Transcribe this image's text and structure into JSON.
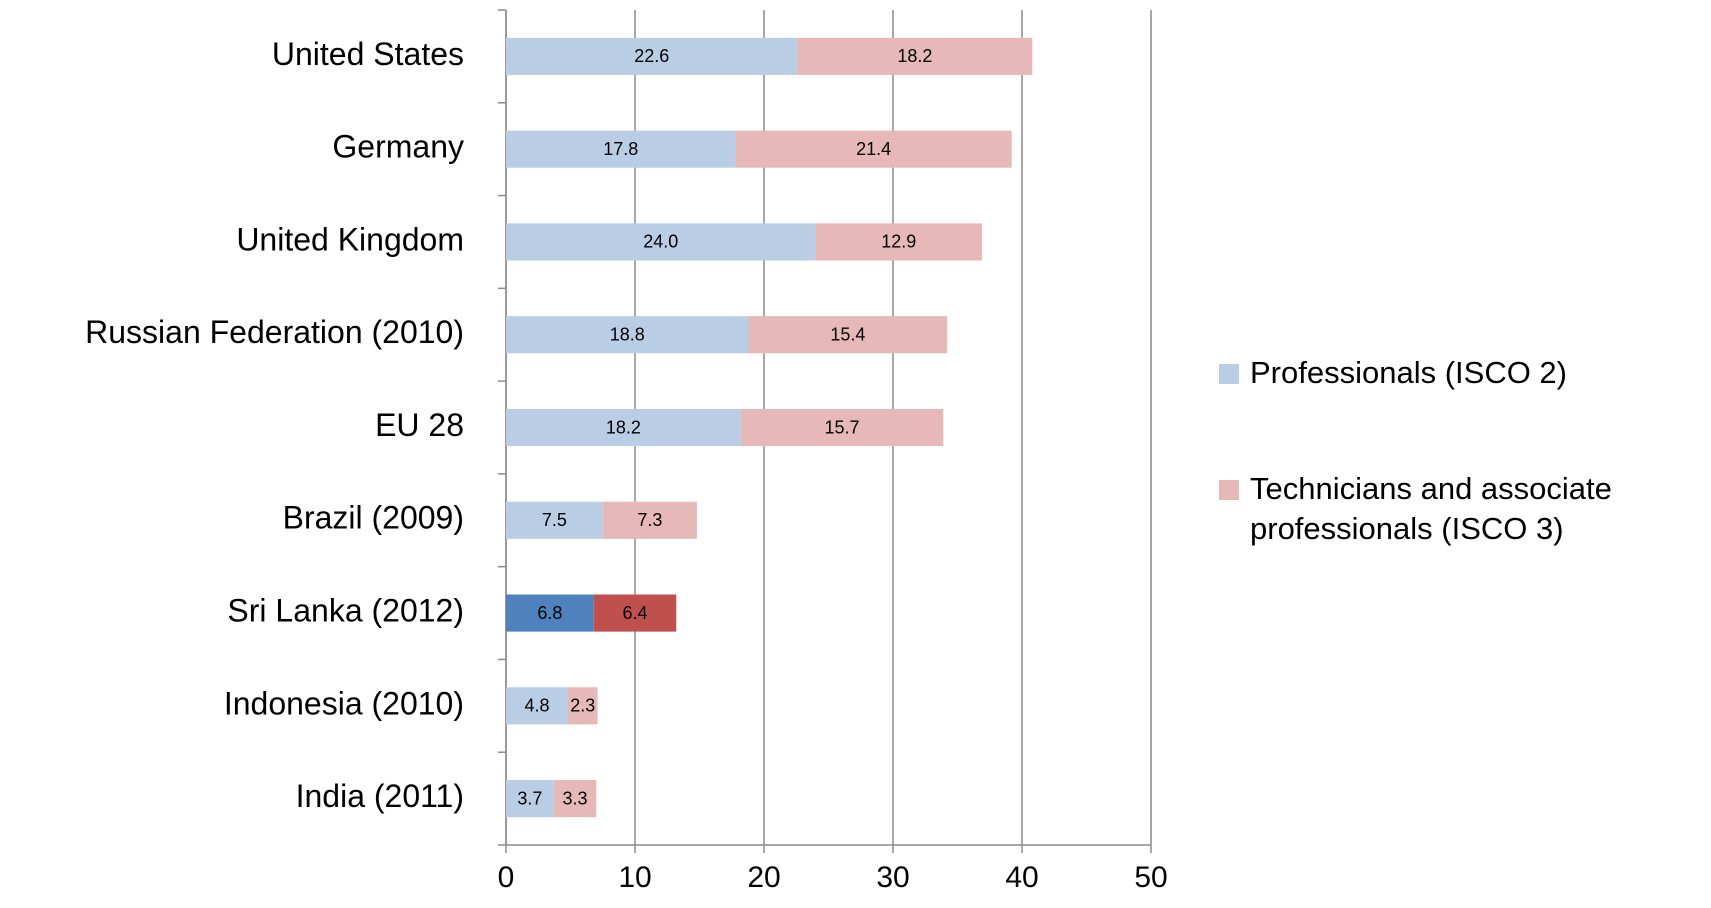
{
  "chart_data": {
    "type": "stacked-bar-horizontal",
    "categories": [
      "United States",
      "Germany",
      "United Kingdom",
      "Russian Federation (2010)",
      "EU 28",
      "Brazil (2009)",
      "Sri Lanka (2012)",
      "Indonesia (2010)",
      "India (2011)"
    ],
    "series": [
      {
        "name": "Professionals (ISCO 2)",
        "color": "#b9cde5",
        "colors": [
          "#b9cde5",
          "#b9cde5",
          "#b9cde5",
          "#b9cde5",
          "#b9cde5",
          "#b9cde5",
          "#4f81bd",
          "#b9cde5",
          "#b9cde5"
        ],
        "values": [
          22.6,
          17.8,
          24.0,
          18.8,
          18.2,
          7.5,
          6.8,
          4.8,
          3.7
        ],
        "value_labels": [
          "22.6",
          "17.8",
          "24.0",
          "18.8",
          "18.2",
          "7.5",
          "6.8",
          "4.8",
          "3.7"
        ]
      },
      {
        "name": "Technicians and associate professionals (ISCO 3)",
        "color": "#e6b9b8",
        "colors": [
          "#e6b9b8",
          "#e6b9b8",
          "#e6b9b8",
          "#e6b9b8",
          "#e6b9b8",
          "#e6b9b8",
          "#c0504d",
          "#e6b9b8",
          "#e6b9b8"
        ],
        "values": [
          18.2,
          21.4,
          12.9,
          15.4,
          15.7,
          7.3,
          6.4,
          2.3,
          3.3
        ],
        "value_labels": [
          "18.2",
          "21.4",
          "12.9",
          "15.4",
          "15.7",
          "7.3",
          "6.4",
          "2.3",
          "3.3"
        ]
      }
    ],
    "xlim": [
      0,
      50
    ],
    "xticks": [
      0,
      10,
      20,
      30,
      40,
      50
    ],
    "grid": true,
    "legend": "right"
  }
}
